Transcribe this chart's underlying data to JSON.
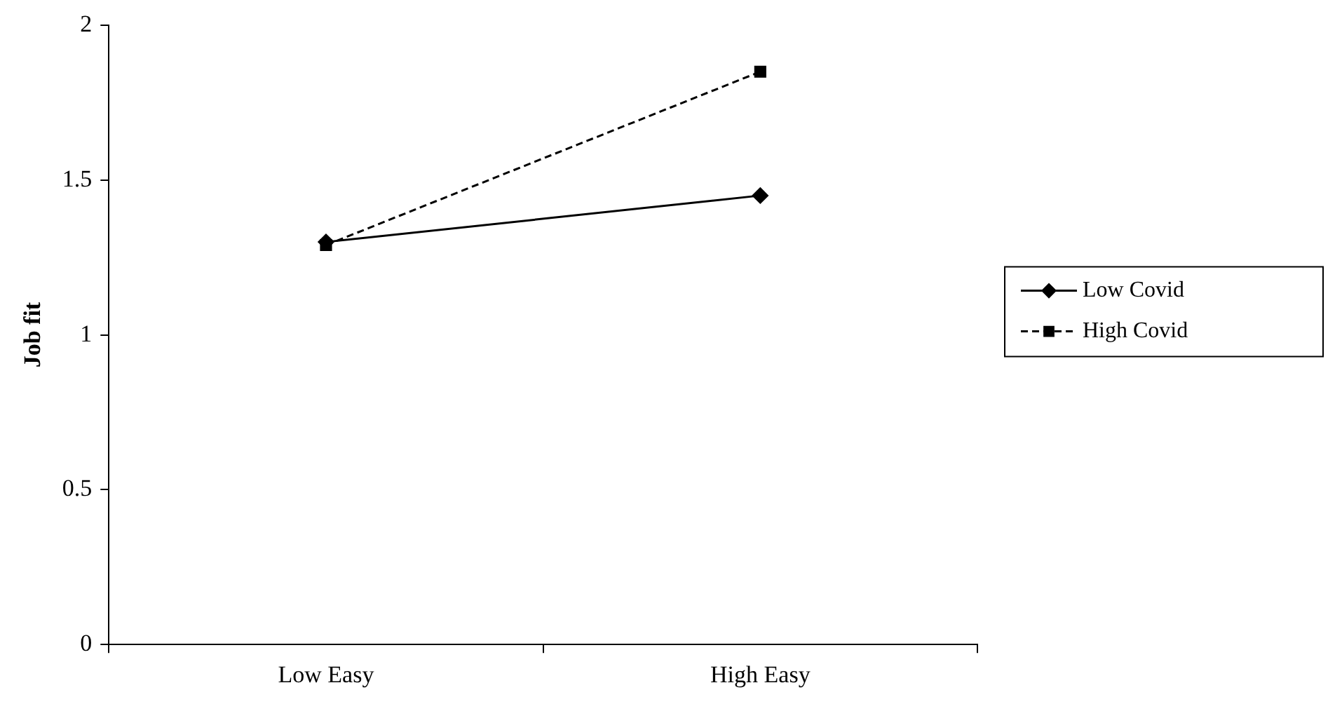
{
  "chart_data": {
    "type": "line",
    "ylabel": "Job fit",
    "categories": [
      "Low Easy",
      "High Easy"
    ],
    "series": [
      {
        "name": "Low Covid",
        "color": "#000000",
        "values": [
          1.3,
          1.45
        ],
        "marker": "diamond",
        "line_style": "solid"
      },
      {
        "name": "High Covid",
        "color": "#000000",
        "values": [
          1.29,
          1.85
        ],
        "marker": "square",
        "line_style": "dashed"
      }
    ],
    "ylim": [
      0,
      2
    ],
    "yticks": [
      0,
      0.5,
      1,
      1.5,
      2
    ],
    "grid": false,
    "legend": "right"
  }
}
